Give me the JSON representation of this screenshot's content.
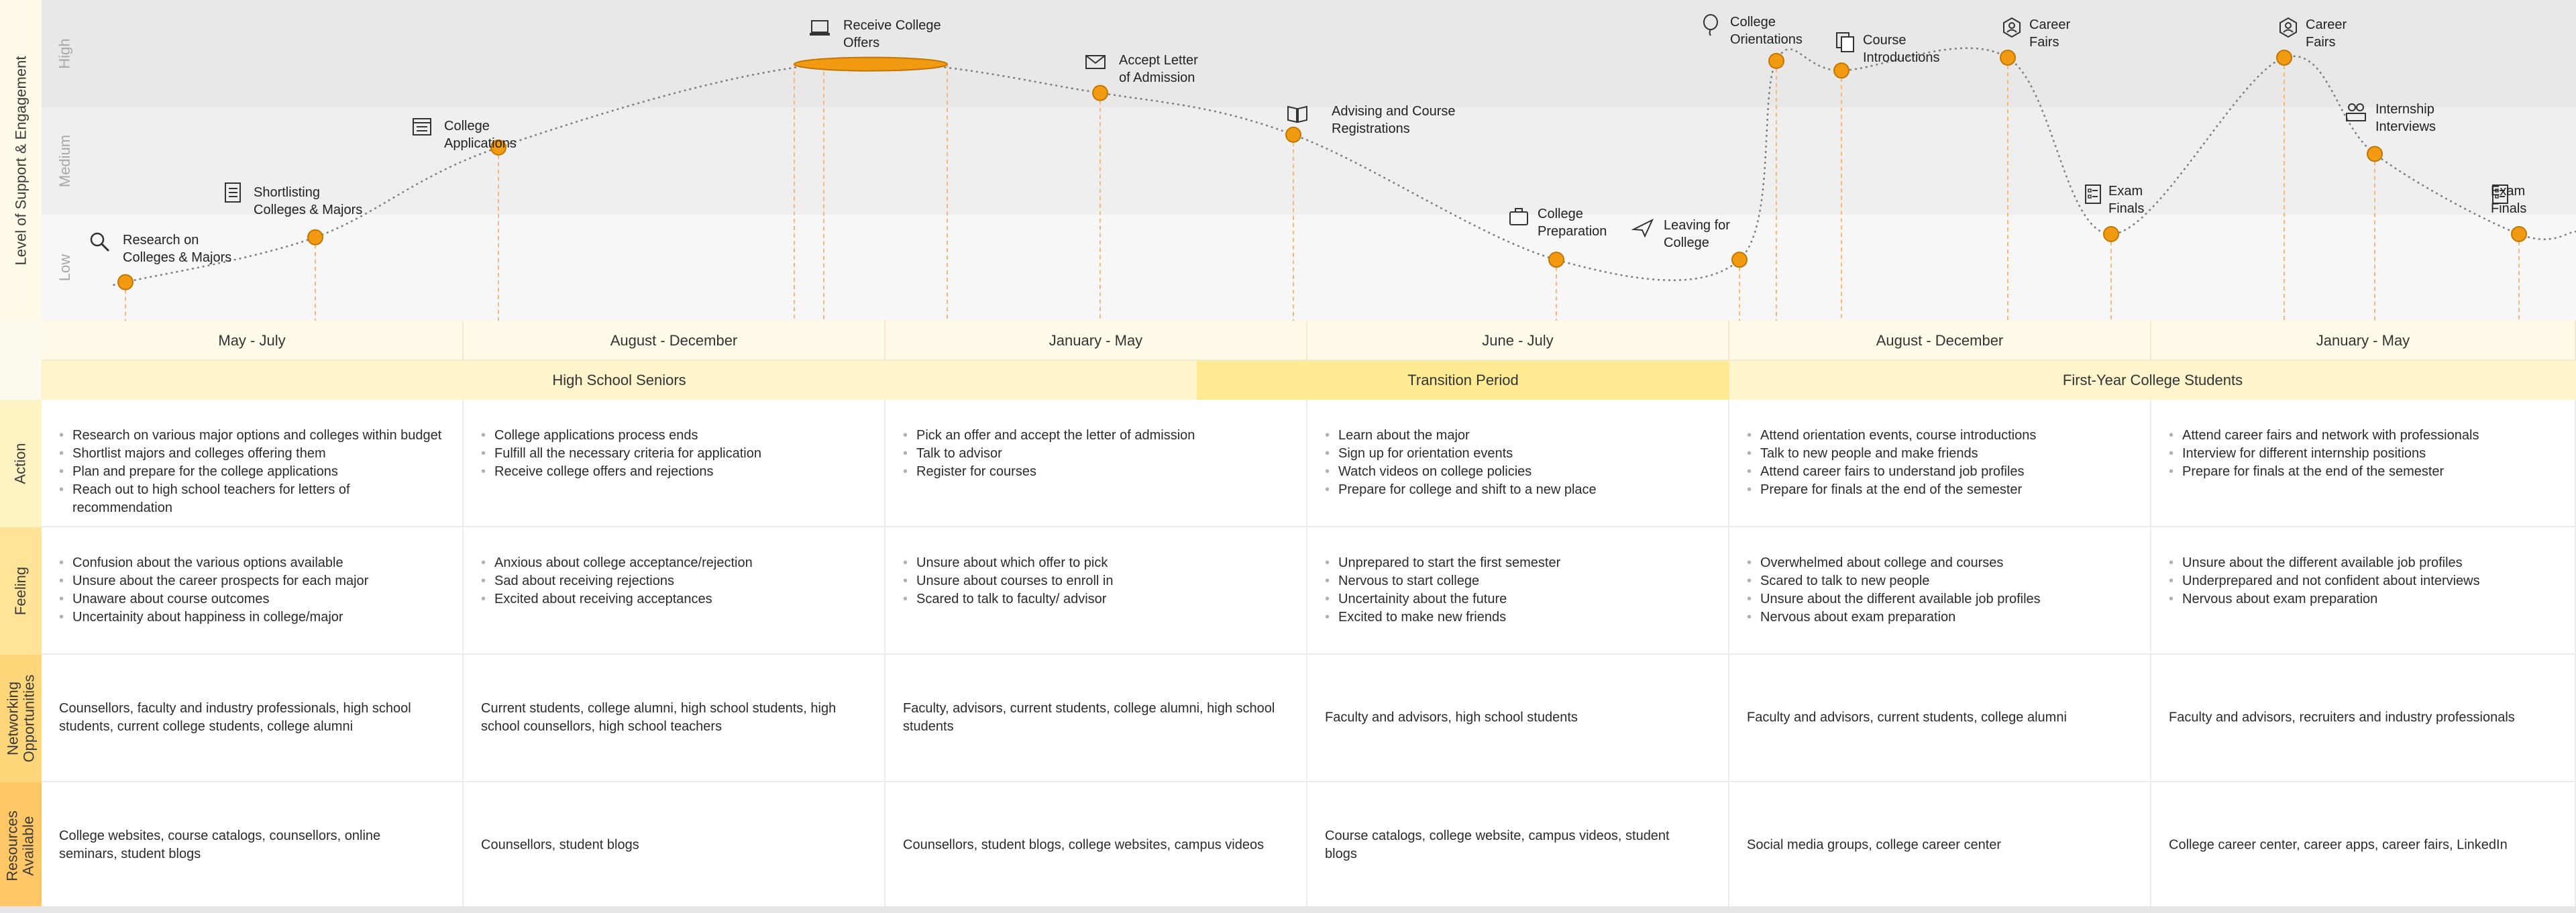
{
  "y_axis_title": "Level of Support & Engagement",
  "levels": [
    "High",
    "Medium",
    "Low"
  ],
  "milestones": [
    {
      "label": "Research on\nColleges & Majors",
      "icon": "search-icon"
    },
    {
      "label": "Shortlisting\nColleges & Majors",
      "icon": "checklist-icon"
    },
    {
      "label": "College\nApplications",
      "icon": "form-icon"
    },
    {
      "label": "Receive College\nOffers",
      "icon": "laptop-icon"
    },
    {
      "label": "Accept Letter\nof Admission",
      "icon": "envelope-icon"
    },
    {
      "label": "Advising and Course\nRegistrations",
      "icon": "book-icon"
    },
    {
      "label": "College\nPreparation",
      "icon": "suitcase-icon"
    },
    {
      "label": "Leaving for\nCollege",
      "icon": "airplane-icon"
    },
    {
      "label": "College\nOrientations",
      "icon": "balloon-icon"
    },
    {
      "label": "Course\nIntroductions",
      "icon": "documents-icon"
    },
    {
      "label": "Career\nFairs",
      "icon": "career-icon"
    },
    {
      "label": "Exam\nFinals",
      "icon": "exam-icon"
    },
    {
      "label": "Career\nFairs",
      "icon": "career-icon"
    },
    {
      "label": "Internship\nInterviews",
      "icon": "interview-icon"
    },
    {
      "label": "Exam\nFinals",
      "icon": "exam-icon"
    }
  ],
  "periods": [
    "May - July",
    "August - December",
    "January - May",
    "June - July",
    "August - December",
    "January - May"
  ],
  "phases": [
    "High School Seniors",
    "Transition Period",
    "First-Year College Students"
  ],
  "rows": [
    {
      "title": "Action",
      "type": "list",
      "cells": [
        [
          "Research on various major options and colleges within budget",
          "Shortlist majors and colleges offering them",
          "Plan and prepare for the college applications",
          "Reach out to high school teachers for letters of recommendation"
        ],
        [
          "College applications process ends",
          "Fulfill all the necessary criteria for application",
          "Receive college offers and rejections"
        ],
        [
          "Pick an offer and accept the letter of admission",
          "Talk to advisor",
          "Register for courses"
        ],
        [
          "Learn about the major",
          "Sign up for orientation events",
          "Watch videos on college policies",
          "Prepare for college and shift to a new place"
        ],
        [
          "Attend orientation events, course introductions",
          "Talk to new people and make friends",
          "Attend career fairs to understand job profiles",
          "Prepare for finals at the end of the semester"
        ],
        [
          "Attend career fairs and network with professionals",
          "Interview for different internship positions",
          "Prepare for finals at the end of the semester"
        ]
      ]
    },
    {
      "title": "Feeling",
      "type": "list",
      "cells": [
        [
          "Confusion about the various options available",
          "Unsure about the career prospects for each major",
          "Unaware about course outcomes",
          "Uncertainity about happiness in college/major"
        ],
        [
          "Anxious about college acceptance/rejection",
          "Sad about receiving rejections",
          "Excited about receiving acceptances"
        ],
        [
          "Unsure about which offer to pick",
          "Unsure about courses to enroll in",
          "Scared to talk to faculty/ advisor"
        ],
        [
          "Unprepared to start the first semester",
          "Nervous to start college",
          "Uncertainity about the future",
          "Excited to make new friends"
        ],
        [
          "Overwhelmed about college and courses",
          "Scared to talk to new people",
          "Unsure about the different available job profiles",
          "Nervous about exam preparation"
        ],
        [
          "Unsure about the different available job profiles",
          "Underprepared and not confident about interviews",
          "Nervous about exam preparation"
        ]
      ]
    },
    {
      "title": "Networking\nOpportunities",
      "type": "text",
      "cells": [
        "Counsellors, faculty and industry professionals, high school students, current college students, college alumni",
        "Current students, college alumni, high school students, high school counsellors, high school teachers",
        "Faculty, advisors, current students, college alumni, high school students",
        "Faculty and advisors, high school students",
        "Faculty and advisors, current students, college alumni",
        "Faculty and advisors, recruiters and industry professionals"
      ]
    },
    {
      "title": "Resources\nAvailable",
      "type": "text",
      "cells": [
        "College websites, course catalogs, counsellors, online seminars, student blogs",
        "Counsellors, student blogs",
        "Counsellors, student blogs, college websites, campus videos",
        "Course catalogs, college website, campus videos, student blogs",
        "Social media groups, college career center",
        "College career center, career apps, career fairs, LinkedIn"
      ]
    }
  ],
  "colors": {
    "high_band": "#e8e8e8",
    "medium_band": "#efefef",
    "low_band": "#f7f7f7",
    "marker": "#f29b12",
    "marker_stroke": "#c27600",
    "guide": "#f6b87a",
    "period_bg": "#fffbe8",
    "phase_bg": "#fff5cc",
    "phase_highlight": "#ffeb94",
    "side_yellow_1": "#fffbe8",
    "side_yellow_2": "#fff3c4",
    "side_yellow_3": "#ffe497",
    "side_yellow_4": "#ffd77a",
    "side_yellow_5": "#ffc766"
  },
  "chart_data": {
    "type": "line",
    "title": "",
    "ylabel": "Level of Support & Engagement",
    "y_levels": [
      "Low",
      "Medium",
      "High"
    ],
    "points": [
      {
        "label": "Research on Colleges & Majors",
        "level": 0.12
      },
      {
        "label": "Shortlisting Colleges & Majors",
        "level": 0.26
      },
      {
        "label": "College Applications",
        "level": 0.54
      },
      {
        "label": "Receive College Offers",
        "level": 0.8
      },
      {
        "label": "Accept Letter of Admission",
        "level": 0.71
      },
      {
        "label": "Advising and Course Registrations",
        "level": 0.58
      },
      {
        "label": "College Preparation",
        "level": 0.19
      },
      {
        "label": "Leaving for College",
        "level": 0.19
      },
      {
        "label": "College Orientations",
        "level": 0.81
      },
      {
        "label": "Course Introductions",
        "level": 0.78
      },
      {
        "label": "Career Fairs",
        "level": 0.82
      },
      {
        "label": "Exam Finals",
        "level": 0.27
      },
      {
        "label": "Career Fairs",
        "level": 0.82
      },
      {
        "label": "Internship Interviews",
        "level": 0.52
      },
      {
        "label": "Exam Finals",
        "level": 0.27
      }
    ]
  }
}
